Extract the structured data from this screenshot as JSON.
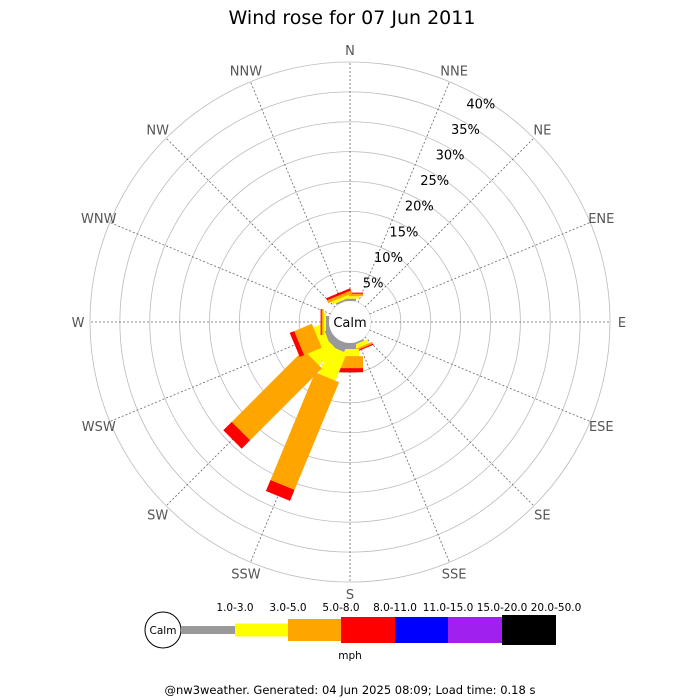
{
  "chart_data": {
    "type": "wind-rose",
    "title": "Wind rose for 07 Jun 2011",
    "directions": [
      "N",
      "NNE",
      "NE",
      "ENE",
      "E",
      "ESE",
      "SE",
      "SSE",
      "S",
      "SSW",
      "SW",
      "WSW",
      "W",
      "WNW",
      "NW",
      "NNW"
    ],
    "radial_ticks": [
      "5%",
      "10%",
      "15%",
      "20%",
      "25%",
      "30%",
      "35%",
      "40%"
    ],
    "radial_max": 40,
    "calm_label": "Calm",
    "speed_unit": "mph",
    "bins": [
      {
        "label": "1.0-3.0",
        "color": "#999999"
      },
      {
        "label": "3.0-5.0",
        "color": "#ffff00"
      },
      {
        "label": "5.0-8.0",
        "color": "#ffa500"
      },
      {
        "label": "8.0-11.0",
        "color": "#ff0000"
      },
      {
        "label": "11.0-15.0",
        "color": "#0000ff"
      },
      {
        "label": "15.0-20.0",
        "color": "#a020f0"
      },
      {
        "label": "20.0-50.0",
        "color": "#000000"
      }
    ],
    "series": [
      {
        "direction": "N",
        "values": [
          0.4,
          0.4,
          0.4,
          0.2,
          0,
          0,
          0
        ]
      },
      {
        "direction": "NNE",
        "values": [
          0,
          0,
          0,
          0,
          0,
          0,
          0
        ]
      },
      {
        "direction": "NE",
        "values": [
          0,
          0,
          0,
          0,
          0,
          0,
          0
        ]
      },
      {
        "direction": "ENE",
        "values": [
          0,
          0,
          0,
          0,
          0,
          0,
          0
        ]
      },
      {
        "direction": "E",
        "values": [
          0,
          0,
          0,
          0,
          0,
          0,
          0
        ]
      },
      {
        "direction": "ESE",
        "values": [
          0,
          0,
          0,
          0,
          0,
          0,
          0
        ]
      },
      {
        "direction": "SE",
        "values": [
          0,
          0,
          0,
          0,
          0,
          0,
          0
        ]
      },
      {
        "direction": "SSE",
        "values": [
          0.3,
          0.7,
          0.3,
          0.2,
          0,
          0,
          0
        ]
      },
      {
        "direction": "S",
        "values": [
          1.0,
          1.2,
          2.0,
          0.7,
          0,
          0,
          0
        ]
      },
      {
        "direction": "SSW",
        "values": [
          1.5,
          5.0,
          19.5,
          2.0,
          0,
          0,
          0
        ]
      },
      {
        "direction": "SW",
        "values": [
          1.3,
          4.0,
          17.0,
          2.0,
          0,
          0,
          0
        ]
      },
      {
        "direction": "WSW",
        "values": [
          1.0,
          1.5,
          3.2,
          0.8,
          0,
          0,
          0
        ]
      },
      {
        "direction": "W",
        "values": [
          0.5,
          0.4,
          0.3,
          0.2,
          0,
          0,
          0
        ]
      },
      {
        "direction": "WNW",
        "values": [
          0,
          0,
          0,
          0,
          0,
          0,
          0
        ]
      },
      {
        "direction": "NW",
        "values": [
          0,
          0,
          0,
          0,
          0,
          0,
          0
        ]
      },
      {
        "direction": "NNW",
        "values": [
          0.3,
          0.5,
          0.5,
          0.4,
          0,
          0,
          0
        ]
      }
    ]
  },
  "footer": "@nw3weather. Generated: 04 Jun 2025 08:09; Load time: 0.18 s"
}
